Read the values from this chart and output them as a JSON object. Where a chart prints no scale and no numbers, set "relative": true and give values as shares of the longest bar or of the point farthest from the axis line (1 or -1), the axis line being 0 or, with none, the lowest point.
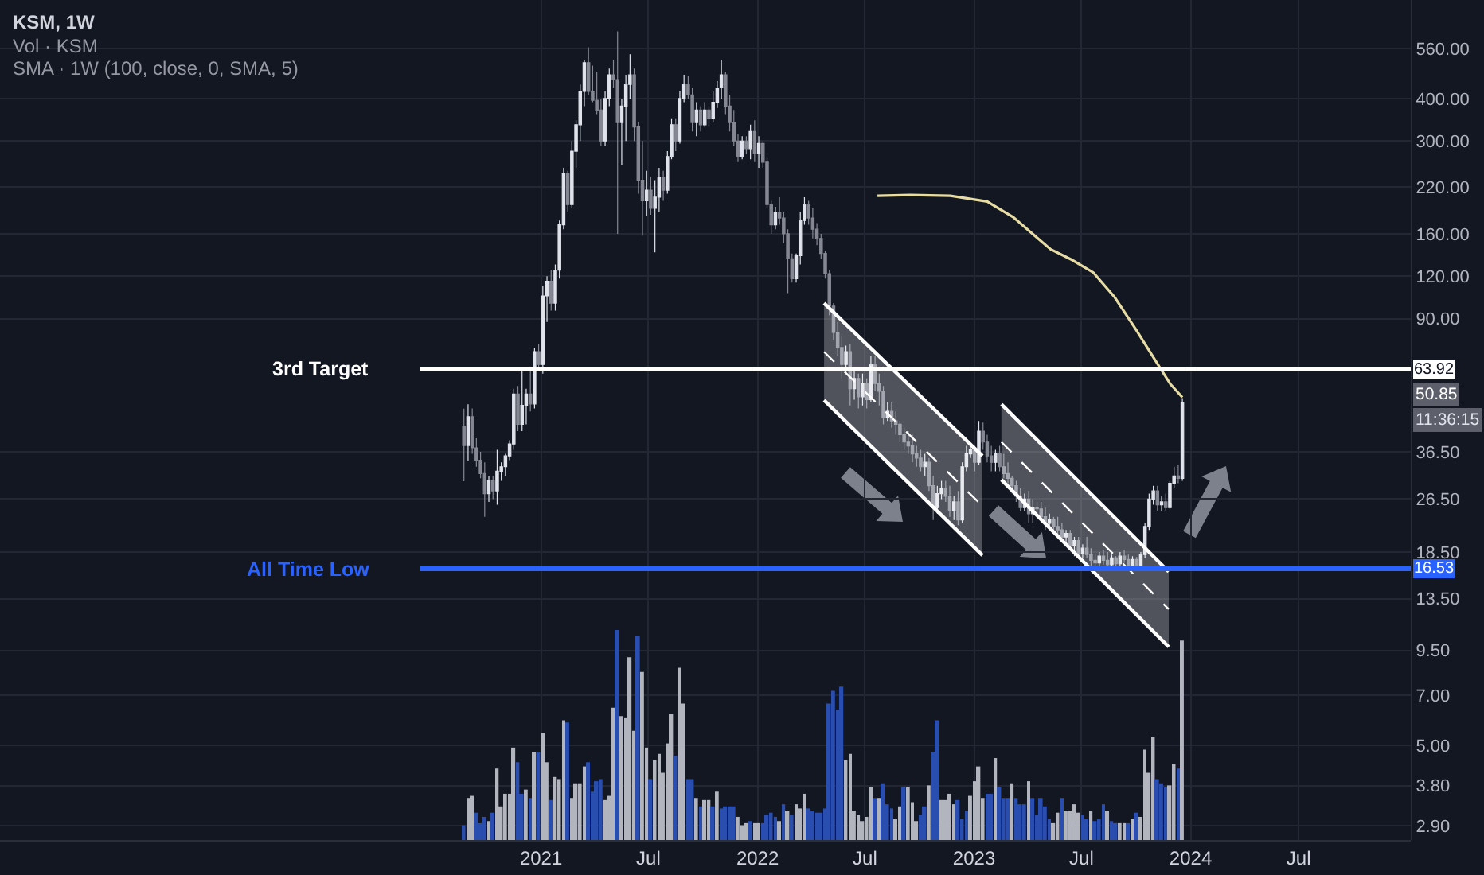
{
  "chart_data": [
    {
      "type": "candlestick",
      "title": "KSM, 1W",
      "subtitle": "SMA · 1W (100, close, 0, SMA, 5)",
      "log": true,
      "grid": true,
      "tick_labels": "y",
      "xlim": [
        "2018-07-04",
        "2025-01-06"
      ],
      "xticks": [
        {
          "value": "2021-01-01",
          "label": null
        },
        {
          "value": "2021-07-01",
          "label": null
        },
        {
          "value": "2022-01-01",
          "label": null
        },
        {
          "value": "2022-07-01",
          "label": null
        },
        {
          "value": "2023-01-01",
          "label": null
        },
        {
          "value": "2023-07-01",
          "label": null
        },
        {
          "value": "2024-01-01",
          "label": null
        },
        {
          "value": "2024-07-01",
          "label": null
        }
      ],
      "ylim": [
        2.63,
        780
      ],
      "yticks": [
        {
          "value": 2.9,
          "label": "2.90"
        },
        {
          "value": 3.8,
          "label": "3.80"
        },
        {
          "value": 5,
          "label": "5.00"
        },
        {
          "value": 7,
          "label": "7.00"
        },
        {
          "value": 9.5,
          "label": "9.50"
        },
        {
          "value": 13.5,
          "label": "13.50"
        },
        {
          "value": 18.5,
          "label": "18.50"
        },
        {
          "value": 26.5,
          "label": "26.50"
        },
        {
          "value": 36.5,
          "label": "36.50"
        },
        {
          "value": 90,
          "label": "90.00"
        },
        {
          "value": 120,
          "label": "120.00"
        },
        {
          "value": 160,
          "label": "160.00"
        },
        {
          "value": 220,
          "label": "220.00"
        },
        {
          "value": 300,
          "label": "300.00"
        },
        {
          "value": 400,
          "label": "400.00"
        },
        {
          "value": 560,
          "label": "560.00"
        }
      ],
      "x": [
        "2020-08-24",
        "2020-08-31",
        "2020-09-07",
        "2020-09-14",
        "2020-09-21",
        "2020-09-28",
        "2020-10-05",
        "2020-10-12",
        "2020-10-19",
        "2020-10-26",
        "2020-11-02",
        "2020-11-09",
        "2020-11-16",
        "2020-11-23",
        "2020-11-30",
        "2020-12-07",
        "2020-12-14",
        "2020-12-21",
        "2020-12-28",
        "2021-01-04",
        "2021-01-11",
        "2021-01-18",
        "2021-01-25",
        "2021-02-01",
        "2021-02-08",
        "2021-02-15",
        "2021-02-22",
        "2021-03-01",
        "2021-03-08",
        "2021-03-15",
        "2021-03-22",
        "2021-03-29",
        "2021-04-05",
        "2021-04-12",
        "2021-04-19",
        "2021-04-26",
        "2021-05-03",
        "2021-05-10",
        "2021-05-17",
        "2021-05-24",
        "2021-05-31",
        "2021-06-07",
        "2021-06-14",
        "2021-06-21",
        "2021-06-28",
        "2021-07-05",
        "2021-07-12",
        "2021-07-19",
        "2021-07-26",
        "2021-08-02",
        "2021-08-09",
        "2021-08-16",
        "2021-08-23",
        "2021-08-30",
        "2021-09-06",
        "2021-09-13",
        "2021-09-20",
        "2021-09-27",
        "2021-10-04",
        "2021-10-11",
        "2021-10-18",
        "2021-10-25",
        "2021-11-01",
        "2021-11-08",
        "2021-11-15",
        "2021-11-22",
        "2021-11-29",
        "2021-12-06",
        "2021-12-13",
        "2021-12-20",
        "2021-12-27",
        "2022-01-03",
        "2022-01-10",
        "2022-01-17",
        "2022-01-24",
        "2022-01-31",
        "2022-02-07",
        "2022-02-14",
        "2022-02-21",
        "2022-02-28",
        "2022-03-07",
        "2022-03-14",
        "2022-03-21",
        "2022-03-28",
        "2022-04-04",
        "2022-04-11",
        "2022-04-18",
        "2022-04-25",
        "2022-05-02",
        "2022-05-09",
        "2022-05-16",
        "2022-05-23",
        "2022-05-30",
        "2022-06-06",
        "2022-06-13",
        "2022-06-20",
        "2022-06-27",
        "2022-07-04",
        "2022-07-11",
        "2022-07-18",
        "2022-07-25",
        "2022-08-01",
        "2022-08-08",
        "2022-08-15",
        "2022-08-22",
        "2022-08-29",
        "2022-09-05",
        "2022-09-12",
        "2022-09-19",
        "2022-09-26",
        "2022-10-03",
        "2022-10-10",
        "2022-10-17",
        "2022-10-24",
        "2022-10-31",
        "2022-11-07",
        "2022-11-14",
        "2022-11-21",
        "2022-11-28",
        "2022-12-05",
        "2022-12-12",
        "2022-12-19",
        "2022-12-26",
        "2023-01-02",
        "2023-01-09",
        "2023-01-16",
        "2023-01-23",
        "2023-01-30",
        "2023-02-06",
        "2023-02-13",
        "2023-02-20",
        "2023-02-27",
        "2023-03-06",
        "2023-03-13",
        "2023-03-20",
        "2023-03-27",
        "2023-04-03",
        "2023-04-10",
        "2023-04-17",
        "2023-04-24",
        "2023-05-01",
        "2023-05-08",
        "2023-05-15",
        "2023-05-22",
        "2023-05-29",
        "2023-06-05",
        "2023-06-12",
        "2023-06-19",
        "2023-06-26",
        "2023-07-03",
        "2023-07-10",
        "2023-07-17",
        "2023-07-24",
        "2023-07-31",
        "2023-08-07",
        "2023-08-14",
        "2023-08-21",
        "2023-08-28",
        "2023-09-04",
        "2023-09-11",
        "2023-09-18",
        "2023-09-25",
        "2023-10-02",
        "2023-10-09",
        "2023-10-16",
        "2023-10-23",
        "2023-10-30",
        "2023-11-06",
        "2023-11-13",
        "2023-11-20",
        "2023-11-27",
        "2023-12-04",
        "2023-12-11",
        "2023-12-18"
      ],
      "ohlc": [
        [
          43.4,
          48.9,
          29.9,
          38.1
        ],
        [
          38.1,
          50.4,
          34.2,
          46.3
        ],
        [
          46.3,
          49,
          36,
          37.5
        ],
        [
          37.5,
          40,
          33,
          34.5
        ],
        [
          34.5,
          36.5,
          30.5,
          31.5
        ],
        [
          31.5,
          34,
          23.5,
          27.5
        ],
        [
          27.5,
          31,
          26,
          30
        ],
        [
          30,
          31,
          26.5,
          28
        ],
        [
          28,
          37,
          25.5,
          32
        ],
        [
          32,
          34,
          30,
          33
        ],
        [
          33,
          36,
          31,
          35.5
        ],
        [
          35.5,
          39.5,
          34.5,
          38.5
        ],
        [
          38.5,
          56,
          37,
          54
        ],
        [
          54,
          57,
          42,
          44
        ],
        [
          44,
          64,
          42,
          50
        ],
        [
          50,
          56,
          44,
          54
        ],
        [
          54,
          63,
          48,
          50.5
        ],
        [
          50.5,
          74,
          49,
          72
        ],
        [
          72,
          76,
          63,
          66
        ],
        [
          66,
          112,
          62,
          105
        ],
        [
          105,
          120,
          88,
          116
        ],
        [
          116,
          125,
          95,
          100
        ],
        [
          100,
          130,
          95,
          125
        ],
        [
          125,
          175,
          118,
          170
        ],
        [
          170,
          250,
          165,
          240
        ],
        [
          240,
          245,
          185,
          195
        ],
        [
          195,
          300,
          190,
          280
        ],
        [
          280,
          345,
          250,
          335
        ],
        [
          335,
          440,
          300,
          420
        ],
        [
          420,
          520,
          380,
          510
        ],
        [
          510,
          566,
          410,
          420
        ],
        [
          420,
          500,
          390,
          395
        ],
        [
          395,
          480,
          360,
          370
        ],
        [
          370,
          400,
          290,
          300
        ],
        [
          300,
          420,
          290,
          400
        ],
        [
          400,
          490,
          380,
          470
        ],
        [
          470,
          520,
          430,
          455
        ],
        [
          455,
          630,
          160,
          340
        ],
        [
          340,
          400,
          255,
          380
        ],
        [
          380,
          470,
          300,
          440
        ],
        [
          440,
          540,
          400,
          470
        ],
        [
          470,
          490,
          300,
          330
        ],
        [
          330,
          340,
          210,
          230
        ],
        [
          230,
          300,
          158,
          200
        ],
        [
          200,
          245,
          180,
          215
        ],
        [
          215,
          235,
          182,
          190
        ],
        [
          190,
          230,
          141,
          205
        ],
        [
          205,
          250,
          185,
          235
        ],
        [
          235,
          245,
          200,
          215
        ],
        [
          215,
          280,
          210,
          270
        ],
        [
          270,
          350,
          265,
          335
        ],
        [
          335,
          350,
          280,
          300
        ],
        [
          300,
          420,
          295,
          400
        ],
        [
          400,
          470,
          390,
          440
        ],
        [
          440,
          465,
          400,
          410
        ],
        [
          410,
          430,
          320,
          340
        ],
        [
          340,
          390,
          310,
          370
        ],
        [
          370,
          380,
          320,
          335
        ],
        [
          335,
          390,
          330,
          370
        ],
        [
          370,
          380,
          330,
          350
        ],
        [
          350,
          420,
          340,
          390
        ],
        [
          390,
          450,
          375,
          430
        ],
        [
          430,
          520,
          400,
          470
        ],
        [
          470,
          480,
          360,
          380
        ],
        [
          380,
          410,
          320,
          340
        ],
        [
          340,
          370,
          290,
          300
        ],
        [
          300,
          315,
          260,
          270
        ],
        [
          270,
          310,
          265,
          300
        ],
        [
          300,
          310,
          275,
          285
        ],
        [
          285,
          335,
          265,
          320
        ],
        [
          320,
          345,
          260,
          275
        ],
        [
          275,
          310,
          250,
          295
        ],
        [
          295,
          300,
          250,
          260
        ],
        [
          260,
          270,
          190,
          195
        ],
        [
          195,
          200,
          160,
          170
        ],
        [
          170,
          192,
          165,
          185
        ],
        [
          185,
          205,
          170,
          178
        ],
        [
          178,
          185,
          150,
          160
        ],
        [
          160,
          165,
          107,
          135
        ],
        [
          135,
          140,
          115,
          118
        ],
        [
          118,
          140,
          115,
          138
        ],
        [
          138,
          185,
          130,
          175
        ],
        [
          175,
          205,
          170,
          195
        ],
        [
          195,
          200,
          170,
          178
        ],
        [
          178,
          190,
          155,
          165
        ],
        [
          165,
          172,
          148,
          155
        ],
        [
          155,
          160,
          135,
          140
        ],
        [
          140,
          142,
          118,
          122
        ],
        [
          122,
          125,
          92,
          98
        ],
        [
          98,
          100,
          78,
          82
        ],
        [
          82,
          88,
          70,
          74
        ],
        [
          74,
          80,
          60,
          66
        ],
        [
          66,
          75,
          62,
          72
        ],
        [
          72,
          76,
          50,
          56
        ],
        [
          56,
          64,
          52,
          60
        ],
        [
          60,
          62,
          49,
          53
        ],
        [
          53,
          62,
          50,
          58
        ],
        [
          58,
          60,
          49,
          52
        ],
        [
          52,
          70,
          51,
          66
        ],
        [
          66,
          70,
          55,
          58
        ],
        [
          58,
          62,
          50,
          55
        ],
        [
          55,
          57,
          44,
          46
        ],
        [
          46,
          51,
          45,
          48
        ],
        [
          48,
          51,
          43,
          45
        ],
        [
          45,
          48,
          41,
          44
        ],
        [
          44,
          45,
          39,
          41
        ],
        [
          41,
          43,
          37,
          39
        ],
        [
          39,
          42,
          36,
          38
        ],
        [
          38,
          41,
          34,
          36
        ],
        [
          36,
          38,
          33,
          35
        ],
        [
          35,
          37,
          32,
          33
        ],
        [
          33,
          36,
          31,
          34
        ],
        [
          34,
          35,
          28,
          29
        ],
        [
          29,
          31,
          23,
          25
        ],
        [
          25,
          29,
          24,
          27.5
        ],
        [
          27.5,
          30,
          26.5,
          28.5
        ],
        [
          28.5,
          30,
          26,
          27
        ],
        [
          27,
          29,
          23.5,
          24.5
        ],
        [
          24.5,
          27,
          23,
          26
        ],
        [
          26,
          28,
          22.2,
          23
        ],
        [
          23,
          34,
          22.5,
          33
        ],
        [
          33,
          38,
          32,
          36
        ],
        [
          36,
          38.5,
          35,
          37
        ],
        [
          37,
          38,
          32,
          34
        ],
        [
          34,
          45,
          33.5,
          42
        ],
        [
          42,
          44.5,
          37,
          39
        ],
        [
          39,
          41,
          34,
          35.5
        ],
        [
          35.5,
          38,
          32,
          34
        ],
        [
          34,
          37,
          32,
          36
        ],
        [
          36,
          38,
          32,
          33
        ],
        [
          33,
          36,
          30.5,
          31.5
        ],
        [
          31.5,
          34,
          29.5,
          30.5
        ],
        [
          30.5,
          31,
          27.5,
          29
        ],
        [
          29,
          30,
          26,
          27
        ],
        [
          27,
          28.5,
          24.5,
          25
        ],
        [
          25,
          27.5,
          24.5,
          26.5
        ],
        [
          26.5,
          28,
          22.5,
          24
        ],
        [
          24,
          26.5,
          22.5,
          25
        ],
        [
          25,
          26,
          24,
          24.8
        ],
        [
          24.8,
          26,
          23,
          23.5
        ],
        [
          23.5,
          25,
          21.5,
          22.5
        ],
        [
          22.5,
          24,
          22,
          23
        ],
        [
          23,
          23.5,
          21.5,
          22
        ],
        [
          22,
          23.5,
          20.8,
          21.5
        ],
        [
          21.5,
          22.5,
          20,
          20.5
        ],
        [
          20.5,
          21.5,
          19.5,
          21
        ],
        [
          21,
          21.5,
          18.8,
          19.3
        ],
        [
          19.3,
          20.5,
          18,
          20
        ],
        [
          20,
          20.5,
          17.8,
          18.3
        ],
        [
          18.3,
          19.5,
          17.8,
          19
        ],
        [
          19,
          20.5,
          17.8,
          18.2
        ],
        [
          18.2,
          19,
          16.6,
          17.5
        ],
        [
          17.5,
          18.3,
          16.6,
          17.2
        ],
        [
          17.2,
          18.5,
          16.8,
          18
        ],
        [
          18,
          18.8,
          17,
          17.5
        ],
        [
          17.5,
          18.5,
          16.6,
          17
        ],
        [
          17,
          18.2,
          16.7,
          17.8
        ],
        [
          17.8,
          18,
          16.6,
          17.1
        ],
        [
          17.1,
          18.5,
          16.7,
          18
        ],
        [
          18,
          18.8,
          17.2,
          17.6
        ],
        [
          17.6,
          18.2,
          16.6,
          16.9
        ],
        [
          16.9,
          18,
          16.6,
          17.6
        ],
        [
          17.6,
          17.9,
          16.53,
          16.8
        ],
        [
          16.8,
          18.5,
          16.6,
          18.2
        ],
        [
          18.2,
          22.5,
          17.8,
          22
        ],
        [
          22,
          27.5,
          21.5,
          26.5
        ],
        [
          26.5,
          29,
          25.5,
          28
        ],
        [
          28,
          29,
          24.5,
          25.5
        ],
        [
          25.5,
          27,
          24.5,
          26
        ],
        [
          26,
          27.5,
          24.5,
          25
        ],
        [
          25,
          30,
          24.8,
          29.5
        ],
        [
          29.5,
          33,
          28.5,
          31
        ],
        [
          31,
          33.5,
          29.5,
          30.5
        ],
        [
          30.5,
          52.5,
          30,
          50.85
        ]
      ],
      "series": [
        {
          "type": "line",
          "color": "#e6dca4",
          "x": [
            "2022-07-22",
            "2022-09-15",
            "2022-11-22",
            "2023-01-23",
            "2023-03-08",
            "2023-04-13",
            "2023-05-10",
            "2023-06-15",
            "2023-07-21",
            "2023-08-26",
            "2023-09-30",
            "2023-11-05",
            "2023-11-28",
            "2023-12-18"
          ],
          "values": [
            207,
            208,
            207,
            199,
            179,
            158,
            144,
            134,
            123,
            104,
            84,
            66.7,
            57.7,
            52.8
          ]
        },
        {
          "type": "line",
          "line_style": "dashed",
          "color": "#ffffff",
          "x": [
            "2022-04-23",
            "2023-01-15"
          ],
          "values": [
            71.9,
            25.3
          ],
          "lower": [
            51.8,
            18.1
          ],
          "upper": [
            100,
            35.5
          ]
        },
        {
          "type": "line",
          "color": "#ffffff",
          "x": [
            "2022-04-23",
            "2023-01-15"
          ],
          "values": [
            100,
            35.5
          ]
        },
        {
          "type": "line",
          "color": "#ffffff",
          "x": [
            "2022-04-23",
            "2023-01-15"
          ],
          "values": [
            51.8,
            18.1
          ]
        },
        {
          "type": "line",
          "line_style": "dashed",
          "color": "#ffffff",
          "x": [
            "2023-02-16",
            "2023-11-25"
          ],
          "values": [
            39,
            12.56
          ],
          "lower": [
            30.2,
            9.73
          ],
          "upper": [
            50.4,
            16.2
          ]
        },
        {
          "type": "line",
          "color": "#ffffff",
          "x": [
            "2023-02-16",
            "2023-11-25"
          ],
          "values": [
            50.4,
            16.2
          ]
        },
        {
          "type": "line",
          "color": "#ffffff",
          "x": [
            "2023-02-16",
            "2023-11-25"
          ],
          "values": [
            30.2,
            9.73
          ]
        }
      ],
      "ref_lines": [
        {
          "axis": "y",
          "value": 63.92,
          "label": "3rd Target",
          "color": "#ffffff"
        },
        {
          "axis": "y",
          "value": 16.53,
          "label": "All Time Low",
          "color": "#2962ff"
        }
      ],
      "annotations": [
        {
          "text": "63.92",
          "y": 63.92
        },
        "50.85",
        "11:36:15",
        {
          "text": "16.53",
          "y": 16.53
        }
      ]
    },
    {
      "type": "bar",
      "title": "Vol · KSM",
      "relative": true,
      "tick_labels": "x",
      "xlim": [
        "2018-07-04",
        "2025-01-06"
      ],
      "xticks": [
        {
          "value": "2021-01-01",
          "label": "2021"
        },
        {
          "value": "2021-07-01",
          "label": "Jul"
        },
        {
          "value": "2022-01-01",
          "label": "2022"
        },
        {
          "value": "2022-07-01",
          "label": "Jul"
        },
        {
          "value": "2023-01-01",
          "label": "2023"
        },
        {
          "value": "2023-07-01",
          "label": "Jul"
        },
        {
          "value": "2024-01-01",
          "label": "2024"
        },
        {
          "value": "2024-07-01",
          "label": "Jul"
        }
      ],
      "x": [
        "2020-08-24",
        "2020-08-31",
        "2020-09-07",
        "2020-09-14",
        "2020-09-21",
        "2020-09-28",
        "2020-10-05",
        "2020-10-12",
        "2020-10-19",
        "2020-10-26",
        "2020-11-02",
        "2020-11-09",
        "2020-11-16",
        "2020-11-23",
        "2020-11-30",
        "2020-12-07",
        "2020-12-14",
        "2020-12-21",
        "2020-12-28",
        "2021-01-04",
        "2021-01-11",
        "2021-01-18",
        "2021-01-25",
        "2021-02-01",
        "2021-02-08",
        "2021-02-15",
        "2021-02-22",
        "2021-03-01",
        "2021-03-08",
        "2021-03-15",
        "2021-03-22",
        "2021-03-29",
        "2021-04-05",
        "2021-04-12",
        "2021-04-19",
        "2021-04-26",
        "2021-05-03",
        "2021-05-10",
        "2021-05-17",
        "2021-05-24",
        "2021-05-31",
        "2021-06-07",
        "2021-06-14",
        "2021-06-21",
        "2021-06-28",
        "2021-07-05",
        "2021-07-12",
        "2021-07-19",
        "2021-07-26",
        "2021-08-02",
        "2021-08-09",
        "2021-08-16",
        "2021-08-23",
        "2021-08-30",
        "2021-09-06",
        "2021-09-13",
        "2021-09-20",
        "2021-09-27",
        "2021-10-04",
        "2021-10-11",
        "2021-10-18",
        "2021-10-25",
        "2021-11-01",
        "2021-11-08",
        "2021-11-15",
        "2021-11-22",
        "2021-11-29",
        "2021-12-06",
        "2021-12-13",
        "2021-12-20",
        "2021-12-27",
        "2022-01-03",
        "2022-01-10",
        "2022-01-17",
        "2022-01-24",
        "2022-01-31",
        "2022-02-07",
        "2022-02-14",
        "2022-02-21",
        "2022-02-28",
        "2022-03-07",
        "2022-03-14",
        "2022-03-21",
        "2022-03-28",
        "2022-04-04",
        "2022-04-11",
        "2022-04-18",
        "2022-04-25",
        "2022-05-02",
        "2022-05-09",
        "2022-05-16",
        "2022-05-23",
        "2022-05-30",
        "2022-06-06",
        "2022-06-13",
        "2022-06-20",
        "2022-06-27",
        "2022-07-04",
        "2022-07-11",
        "2022-07-18",
        "2022-07-25",
        "2022-08-01",
        "2022-08-08",
        "2022-08-15",
        "2022-08-22",
        "2022-08-29",
        "2022-09-05",
        "2022-09-12",
        "2022-09-19",
        "2022-09-26",
        "2022-10-03",
        "2022-10-10",
        "2022-10-17",
        "2022-10-24",
        "2022-10-31",
        "2022-11-07",
        "2022-11-14",
        "2022-11-21",
        "2022-11-28",
        "2022-12-05",
        "2022-12-12",
        "2022-12-19",
        "2022-12-26",
        "2023-01-02",
        "2023-01-09",
        "2023-01-16",
        "2023-01-23",
        "2023-01-30",
        "2023-02-06",
        "2023-02-13",
        "2023-02-20",
        "2023-02-27",
        "2023-03-06",
        "2023-03-13",
        "2023-03-20",
        "2023-03-27",
        "2023-04-03",
        "2023-04-10",
        "2023-04-17",
        "2023-04-24",
        "2023-05-01",
        "2023-05-08",
        "2023-05-15",
        "2023-05-22",
        "2023-05-29",
        "2023-06-05",
        "2023-06-12",
        "2023-06-19",
        "2023-06-26",
        "2023-07-03",
        "2023-07-10",
        "2023-07-17",
        "2023-07-24",
        "2023-07-31",
        "2023-08-07",
        "2023-08-14",
        "2023-08-21",
        "2023-08-28",
        "2023-09-04",
        "2023-09-11",
        "2023-09-18",
        "2023-09-25",
        "2023-10-02",
        "2023-10-09",
        "2023-10-16",
        "2023-10-23",
        "2023-10-30",
        "2023-11-06",
        "2023-11-13",
        "2023-11-20",
        "2023-11-27",
        "2023-12-04",
        "2023-12-11",
        "2023-12-18"
      ],
      "values": [
        0.07,
        0.2,
        0.21,
        0.13,
        0.08,
        0.11,
        0.09,
        0.13,
        0.34,
        0.16,
        0.22,
        0.22,
        0.44,
        0.37,
        0.22,
        0.24,
        0.2,
        0.42,
        0.42,
        0.51,
        0.37,
        0.19,
        0.3,
        0.29,
        0.57,
        0.56,
        0.2,
        0.27,
        0.27,
        0.35,
        0.37,
        0.23,
        0.28,
        0.29,
        0.19,
        0.21,
        0.63,
        1,
        0.59,
        0.58,
        0.87,
        0.52,
        0.97,
        0.8,
        0.44,
        0.29,
        0.38,
        0.41,
        0.32,
        0.46,
        0.6,
        0.4,
        0.82,
        0.65,
        0.29,
        0.29,
        0.2,
        0.16,
        0.19,
        0.19,
        0.16,
        0.23,
        0.15,
        0.16,
        0.16,
        0.16,
        0.11,
        0.07,
        0.08,
        0.09,
        0.08,
        0.08,
        0.08,
        0.12,
        0.13,
        0.11,
        0.09,
        0.17,
        0.14,
        0.12,
        0.17,
        0.15,
        0.22,
        0.15,
        0.14,
        0.13,
        0.13,
        0.15,
        0.65,
        0.71,
        0.62,
        0.73,
        0.38,
        0.41,
        0.14,
        0.12,
        0.09,
        0.11,
        0.25,
        0.2,
        0.2,
        0.27,
        0.17,
        0.15,
        0.1,
        0.16,
        0.25,
        0.25,
        0.18,
        0.09,
        0.12,
        0.16,
        0.26,
        0.42,
        0.57,
        0.19,
        0.19,
        0.22,
        0.17,
        0.19,
        0.1,
        0.14,
        0.21,
        0.28,
        0.35,
        0.2,
        0.22,
        0.22,
        0.39,
        0.25,
        0.2,
        0.2,
        0.27,
        0.2,
        0.17,
        0.17,
        0.28,
        0.2,
        0.12,
        0.2,
        0.16,
        0.1,
        0.08,
        0.13,
        0.2,
        0.14,
        0.14,
        0.17,
        0.13,
        0.12,
        0.1,
        0.14,
        0.09,
        0.1,
        0.17,
        0.14,
        0.09,
        0.08,
        0.08,
        0.08,
        0.08,
        0.1,
        0.13,
        0.11,
        0.43,
        0.32,
        0.49,
        0.29,
        0.27,
        0.25,
        0.26,
        0.36,
        0.34,
        0.95
      ],
      "colors": [
        "#2a4db0",
        "#b2b5be",
        "#b2b5be",
        "#2a4db0",
        "#2a4db0",
        "#2a4db0",
        "#b2b5be",
        "#2a4db0",
        "#b2b5be",
        "#b2b5be",
        "#b2b5be",
        "#b2b5be",
        "#b2b5be",
        "#2a4db0",
        "#2a4db0",
        "#b2b5be",
        "#2a4db0",
        "#b2b5be",
        "#2a4db0",
        "#b2b5be",
        "#b2b5be",
        "#2a4db0",
        "#b2b5be",
        "#b2b5be",
        "#b2b5be",
        "#2a4db0",
        "#b2b5be",
        "#b2b5be",
        "#b2b5be",
        "#b2b5be",
        "#2a4db0",
        "#2a4db0",
        "#2a4db0",
        "#2a4db0",
        "#b2b5be",
        "#b2b5be",
        "#b2b5be",
        "#2a4db0",
        "#b2b5be",
        "#b2b5be",
        "#b2b5be",
        "#b2b5be",
        "#2a4db0",
        "#b2b5be",
        "#b2b5be",
        "#2a4db0",
        "#b2b5be",
        "#b2b5be",
        "#b2b5be",
        "#b2b5be",
        "#b2b5be",
        "#2a4db0",
        "#b2b5be",
        "#b2b5be",
        "#2a4db0",
        "#2a4db0",
        "#b2b5be",
        "#2a4db0",
        "#b2b5be",
        "#b2b5be",
        "#2a4db0",
        "#b2b5be",
        "#2a4db0",
        "#2a4db0",
        "#2a4db0",
        "#2a4db0",
        "#b2b5be",
        "#b2b5be",
        "#b2b5be",
        "#2a4db0",
        "#b2b5be",
        "#b2b5be",
        "#2a4db0",
        "#2a4db0",
        "#2a4db0",
        "#2a4db0",
        "#b2b5be",
        "#2a4db0",
        "#b2b5be",
        "#2a4db0",
        "#b2b5be",
        "#b2b5be",
        "#b2b5be",
        "#2a4db0",
        "#2a4db0",
        "#2a4db0",
        "#2a4db0",
        "#2a4db0",
        "#2a4db0",
        "#2a4db0",
        "#2a4db0",
        "#2a4db0",
        "#b2b5be",
        "#b2b5be",
        "#b2b5be",
        "#b2b5be",
        "#b2b5be",
        "#b2b5be",
        "#b2b5be",
        "#2a4db0",
        "#b2b5be",
        "#2a4db0",
        "#2a4db0",
        "#2a4db0",
        "#b2b5be",
        "#b2b5be",
        "#2a4db0",
        "#b2b5be",
        "#b2b5be",
        "#b2b5be",
        "#2a4db0",
        "#2a4db0",
        "#b2b5be",
        "#2a4db0",
        "#2a4db0",
        "#b2b5be",
        "#b2b5be",
        "#b2b5be",
        "#b2b5be",
        "#2a4db0",
        "#2a4db0",
        "#2a4db0",
        "#b2b5be",
        "#b2b5be",
        "#b2b5be",
        "#b2b5be",
        "#2a4db0",
        "#2a4db0",
        "#b2b5be",
        "#2a4db0",
        "#2a4db0",
        "#2a4db0",
        "#b2b5be",
        "#2a4db0",
        "#2a4db0",
        "#2a4db0",
        "#b2b5be",
        "#2a4db0",
        "#2a4db0",
        "#2a4db0",
        "#2a4db0",
        "#2a4db0",
        "#b2b5be",
        "#b2b5be",
        "#2a4db0",
        "#b2b5be",
        "#b2b5be",
        "#b2b5be",
        "#b2b5be",
        "#2a4db0",
        "#2a4db0",
        "#b2b5be",
        "#2a4db0",
        "#2a4db0",
        "#2a4db0",
        "#b2b5be",
        "#2a4db0",
        "#2a4db0",
        "#b2b5be",
        "#b2b5be",
        "#2a4db0",
        "#b2b5be",
        "#2a4db0",
        "#b2b5be",
        "#b2b5be",
        "#b2b5be",
        "#b2b5be",
        "#2a4db0",
        "#2a4db0",
        "#2a4db0",
        "#b2b5be",
        "#b2b5be",
        "#2a4db0",
        "#b2b5be"
      ]
    }
  ]
}
